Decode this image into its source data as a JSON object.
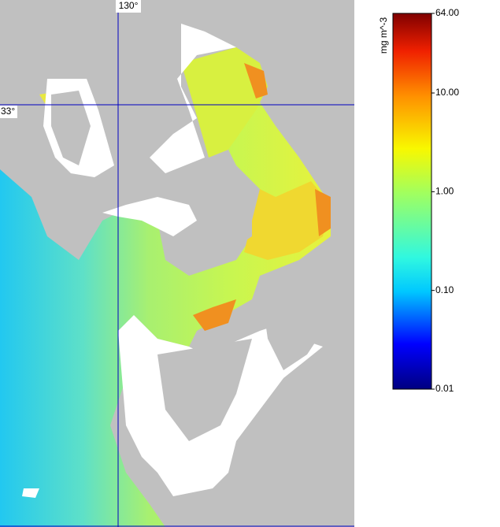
{
  "map": {
    "lon_label": "130°",
    "lat_label": "33°"
  },
  "colorbar": {
    "label": "mg m^-3",
    "scale": "log",
    "lim": [
      0.01,
      64
    ],
    "ticks": [
      {
        "value": 64,
        "label": "64.00"
      },
      {
        "value": 10,
        "label": "10.00"
      },
      {
        "value": 1,
        "label": "1.00"
      },
      {
        "value": 0.1,
        "label": "0.10"
      },
      {
        "value": 0.01,
        "label": "0.01"
      }
    ]
  }
}
